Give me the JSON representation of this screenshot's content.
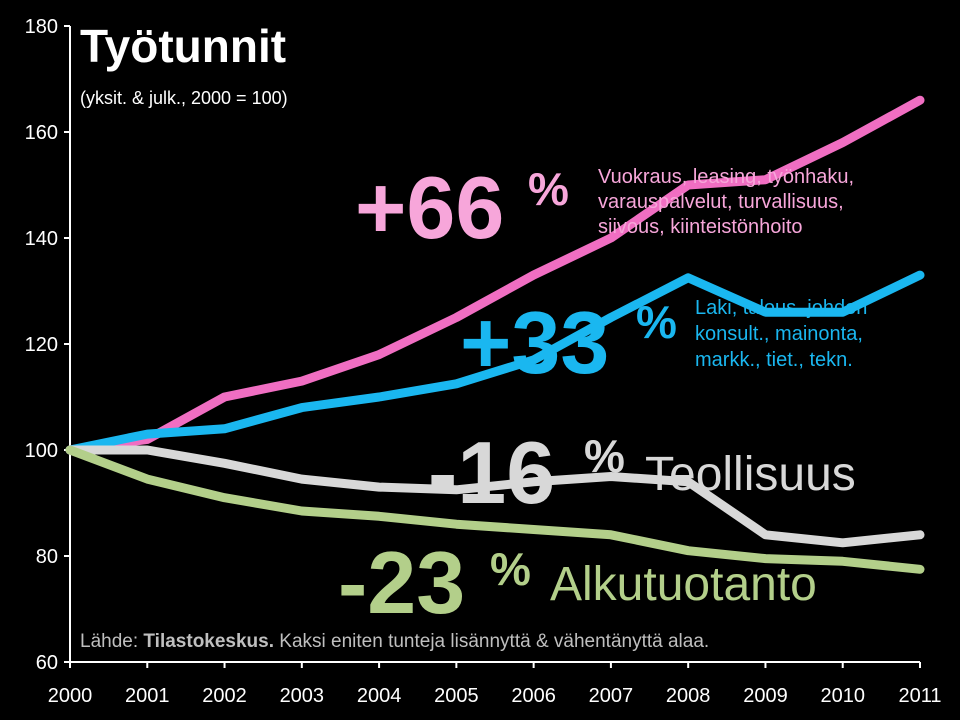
{
  "chart_data": {
    "type": "line",
    "title": "Työtunnit",
    "subtitle": "(yksit. & julk., 2000 = 100)",
    "x": [
      2000,
      2001,
      2002,
      2003,
      2004,
      2005,
      2006,
      2007,
      2008,
      2009,
      2010,
      2011
    ],
    "ylim": [
      60,
      180
    ],
    "yticks": [
      60,
      80,
      100,
      120,
      140,
      160,
      180
    ],
    "grid": false,
    "legend": "none",
    "series": [
      {
        "values": [
          100,
          102,
          110,
          113,
          118,
          125,
          133,
          140,
          150,
          151,
          158,
          166
        ],
        "color": "#f06ec2",
        "change_label": "+66",
        "description": [
          "Vuokraus, leasing, työnhaku,",
          "varauspalvelut, turvallisuus,",
          "siivous, kiinteistönhoito"
        ]
      },
      {
        "values": [
          100,
          103,
          104,
          108,
          110,
          112.5,
          117,
          125,
          132.5,
          126,
          126,
          133
        ],
        "color": "#1ab7f0",
        "change_label": "+33",
        "description": [
          "Laki, talous, johdon",
          "konsult., mainonta,",
          "markk., tiet., tekn."
        ]
      },
      {
        "name": "Teollisuus",
        "values": [
          100,
          100,
          97.5,
          94.5,
          93,
          92.5,
          94,
          95,
          94,
          84,
          82.5,
          84
        ],
        "color": "#d8d8d8",
        "change_label": "-16"
      },
      {
        "name": "Alkutuotanto",
        "values": [
          100,
          94.5,
          91,
          88.5,
          87.5,
          86,
          85,
          84,
          81,
          79.5,
          79,
          77.5
        ],
        "color": "#b3cf8a",
        "change_label": "-23"
      }
    ],
    "percent_sign": "%",
    "source": {
      "prefix": "Lähde: ",
      "name": "Tilastokeskus.",
      "text": " Kaksi eniten tunteja lisännyttä & vähentänyttä alaa."
    }
  }
}
